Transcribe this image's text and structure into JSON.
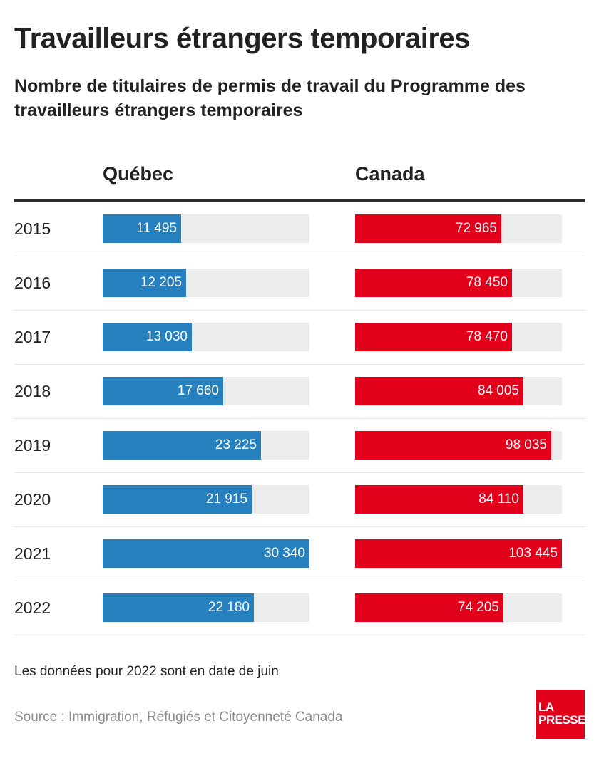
{
  "title": "Travailleurs étrangers temporaires",
  "subtitle": "Nombre de titulaires de permis de travail du Programme des travailleurs étrangers temporaires",
  "colors": {
    "quebec": "#2680bd",
    "canada": "#e2001a",
    "track": "#ececec",
    "rule": "#2b2b2b"
  },
  "chart_data": {
    "type": "bar",
    "orientation": "horizontal",
    "categories": [
      "2015",
      "2016",
      "2017",
      "2018",
      "2019",
      "2020",
      "2021",
      "2022"
    ],
    "series": [
      {
        "name": "Québec",
        "values": [
          11495,
          12205,
          13030,
          17660,
          23225,
          21915,
          30340,
          22180
        ],
        "labels": [
          "11 495",
          "12 205",
          "13 030",
          "17 660",
          "23 225",
          "21 915",
          "30 340",
          "22 180"
        ],
        "max": 30340,
        "color": "#2680bd"
      },
      {
        "name": "Canada",
        "values": [
          72965,
          78450,
          78470,
          84005,
          98035,
          84110,
          103445,
          74205
        ],
        "labels": [
          "72 965",
          "78 450",
          "78 470",
          "84 005",
          "98 035",
          "84 110",
          "103 445",
          "74 205"
        ],
        "max": 103445,
        "color": "#e2001a"
      }
    ],
    "grid": false,
    "legend": "none"
  },
  "note": "Les données pour 2022 sont en date de juin",
  "source": "Source : Immigration, Réfugiés et Citoyenneté Canada",
  "logo": {
    "line1": "LA",
    "line2": "PRESSE",
    "color": "#e2001a"
  }
}
